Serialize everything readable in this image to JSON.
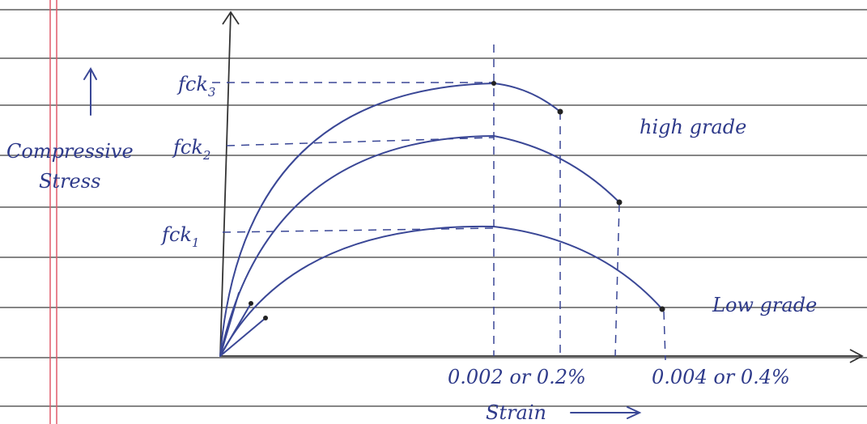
{
  "axes": {
    "y_label": [
      "Compressive",
      "Stress"
    ],
    "x_label": "Strain"
  },
  "stress_levels": [
    {
      "base": "fck",
      "subscript": "3"
    },
    {
      "base": "fck",
      "subscript": "2"
    },
    {
      "base": "fck",
      "subscript": "1"
    }
  ],
  "curve_labels": {
    "high": "high grade",
    "low": "Low grade"
  },
  "strain_marks": [
    "0.002 or 0.2%",
    "0.004 or 0.4%"
  ]
}
